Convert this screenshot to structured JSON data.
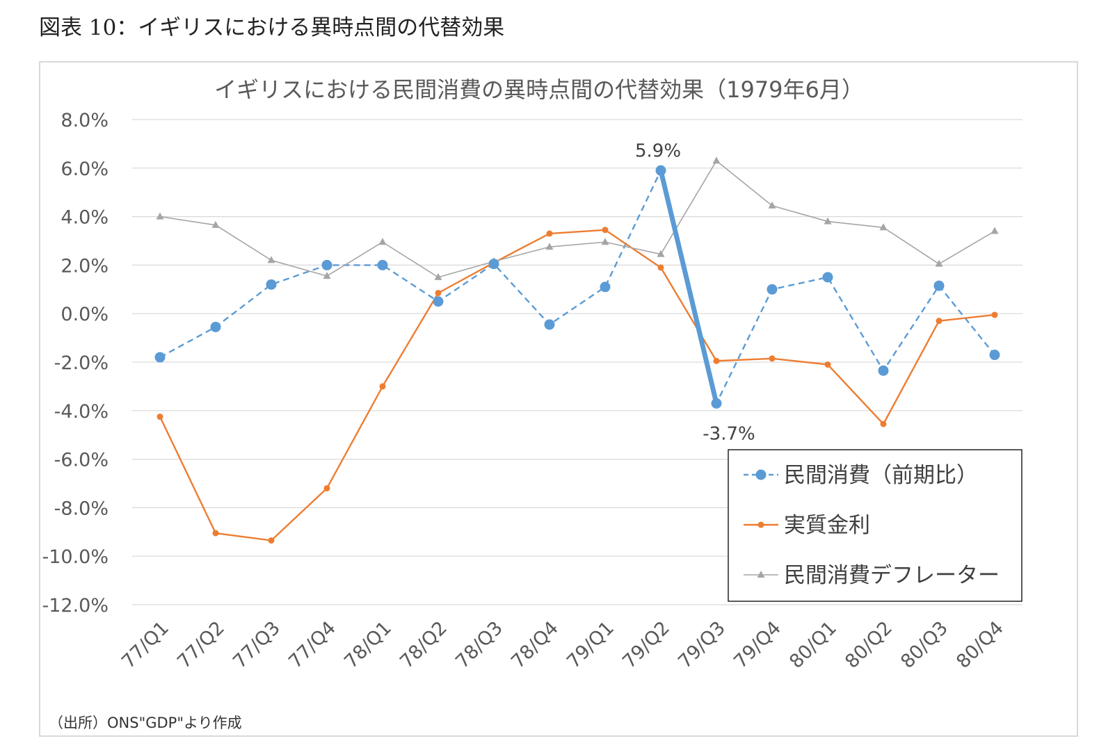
{
  "figure_caption": "図表 10：イギリスにおける異時点間の代替効果",
  "source_note": "（出所）ONS\"GDP\"より作成",
  "colors": {
    "consumption": "#5b9bd5",
    "real_rate": "#ed7d31",
    "deflator": "#a5a5a5",
    "grid": "#d9d9d9"
  },
  "chart_data": {
    "type": "line",
    "title": "イギリスにおける民間消費の異時点間の代替効果（1979年6月）",
    "categories": [
      "77/Q1",
      "77/Q2",
      "77/Q3",
      "77/Q4",
      "78/Q1",
      "78/Q2",
      "78/Q3",
      "78/Q4",
      "79/Q1",
      "79/Q2",
      "79/Q3",
      "79/Q4",
      "80/Q1",
      "80/Q2",
      "80/Q3",
      "80/Q4"
    ],
    "ylim": [
      -12,
      8
    ],
    "yticks": [
      "8.0%",
      "6.0%",
      "4.0%",
      "2.0%",
      "0.0%",
      "-2.0%",
      "-4.0%",
      "-6.0%",
      "-8.0%",
      "-10.0%",
      "-12.0%"
    ],
    "grid": true,
    "legend_position": "bottom-right",
    "series": [
      {
        "name": "民間消費（前期比）",
        "style": "dashed-circle",
        "values": [
          -1.8,
          -0.55,
          1.2,
          2.0,
          2.0,
          0.5,
          2.05,
          -0.45,
          1.1,
          5.9,
          -3.7,
          1.0,
          1.5,
          -2.35,
          1.15,
          -1.7
        ]
      },
      {
        "name": "実質金利",
        "style": "solid-dot",
        "values": [
          -4.25,
          -9.05,
          -9.35,
          -7.2,
          -3.0,
          0.85,
          2.1,
          3.3,
          3.45,
          1.9,
          -1.95,
          -1.85,
          -2.1,
          -4.55,
          -0.3,
          -0.05
        ]
      },
      {
        "name": "民間消費デフレーター",
        "style": "solid-triangle",
        "values": [
          4.0,
          3.65,
          2.2,
          1.55,
          2.95,
          1.5,
          2.15,
          2.75,
          2.95,
          2.45,
          6.3,
          4.45,
          3.8,
          3.55,
          2.05,
          3.4
        ]
      }
    ],
    "annotations": [
      {
        "text": "5.9%",
        "series": 0,
        "index": 9
      },
      {
        "text": "-3.7%",
        "series": 0,
        "index": 10
      }
    ],
    "highlight": {
      "series": 0,
      "from": 9,
      "to": 10
    }
  }
}
